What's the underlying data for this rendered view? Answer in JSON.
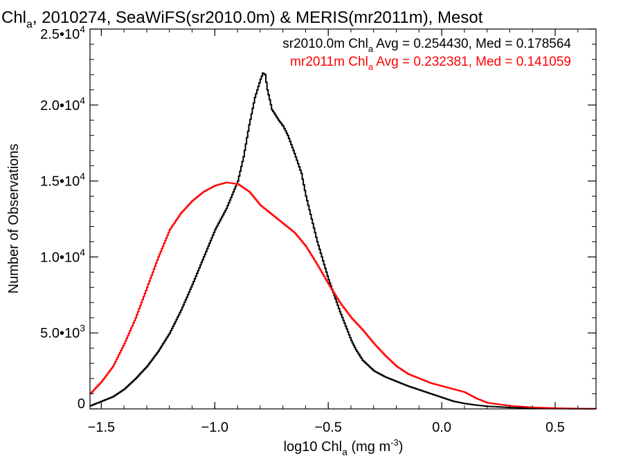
{
  "chart_data": {
    "type": "line",
    "title": {
      "p1": "Chl",
      "p1_sub": "a",
      "p2": ", 2010274, SeaWiFS(sr2010.0m) & MERIS(mr2011m), Mesot"
    },
    "xlabel": {
      "pre": "log10 Chl",
      "sub": "a",
      "mid": " (mg m",
      "sup": "-3",
      "post": ")"
    },
    "ylabel": "Number of Observations",
    "xlim": [
      -1.55,
      0.68
    ],
    "ylim": [
      0,
      25000
    ],
    "x_ticks": [
      {
        "value": -1.5,
        "label": "−1.5"
      },
      {
        "value": -1.0,
        "label": "−1.0"
      },
      {
        "value": -0.5,
        "label": "−0.5"
      },
      {
        "value": 0.0,
        "label": "0.0"
      },
      {
        "value": 0.5,
        "label": "0.5"
      }
    ],
    "y_ticks": [
      {
        "value": 0,
        "mantissa": "0",
        "exp": ""
      },
      {
        "value": 5000,
        "mantissa": "5.0•10",
        "exp": "3"
      },
      {
        "value": 10000,
        "mantissa": "1.0•10",
        "exp": "4"
      },
      {
        "value": 15000,
        "mantissa": "1.5•10",
        "exp": "4"
      },
      {
        "value": 20000,
        "mantissa": "2.0•10",
        "exp": "4"
      },
      {
        "value": 25000,
        "mantissa": "2.5•10",
        "exp": "4"
      }
    ],
    "legend": {
      "placement": "top-right",
      "entries": [
        {
          "pre": "sr2010.0m Chl",
          "sub": "a",
          "post": " Avg = 0.254430, Med = 0.178564",
          "color": "#000000"
        },
        {
          "pre": "mr2011m Chl",
          "sub": "a",
          "post": " Avg = 0.232381, Med = 0.141059",
          "color": "#ff0000"
        }
      ]
    },
    "series": [
      {
        "color": "#000000",
        "x": [
          -1.55,
          -1.5,
          -1.45,
          -1.4,
          -1.35,
          -1.3,
          -1.25,
          -1.2,
          -1.15,
          -1.1,
          -1.05,
          -1.0,
          -0.95,
          -0.9,
          -0.875,
          -0.85,
          -0.825,
          -0.8,
          -0.79,
          -0.78,
          -0.77,
          -0.75,
          -0.72,
          -0.7,
          -0.68,
          -0.65,
          -0.62,
          -0.6,
          -0.58,
          -0.55,
          -0.5,
          -0.45,
          -0.4,
          -0.38,
          -0.35,
          -0.3,
          -0.25,
          -0.2,
          -0.15,
          -0.1,
          -0.05,
          0.0,
          0.05,
          0.1,
          0.15,
          0.2,
          0.3,
          0.4,
          0.5,
          0.6,
          0.68
        ],
        "y": [
          200,
          500,
          800,
          1300,
          2000,
          2800,
          3800,
          5000,
          6500,
          8200,
          10000,
          11800,
          13200,
          15000,
          16600,
          18700,
          20500,
          21700,
          22100,
          22000,
          21000,
          19700,
          19000,
          18600,
          18000,
          16800,
          15500,
          14000,
          12800,
          11000,
          8500,
          6400,
          4500,
          3900,
          3200,
          2500,
          2100,
          1800,
          1500,
          1250,
          1000,
          750,
          500,
          350,
          250,
          170,
          90,
          40,
          20,
          10,
          5
        ]
      },
      {
        "color": "#ff0000",
        "x": [
          -1.55,
          -1.5,
          -1.45,
          -1.4,
          -1.35,
          -1.3,
          -1.25,
          -1.2,
          -1.15,
          -1.1,
          -1.05,
          -1.0,
          -0.95,
          -0.9,
          -0.85,
          -0.8,
          -0.75,
          -0.7,
          -0.65,
          -0.6,
          -0.55,
          -0.5,
          -0.45,
          -0.4,
          -0.35,
          -0.3,
          -0.25,
          -0.2,
          -0.15,
          -0.1,
          -0.05,
          0.0,
          0.05,
          0.1,
          0.15,
          0.2,
          0.3,
          0.4,
          0.5,
          0.6,
          0.68
        ],
        "y": [
          1000,
          1800,
          2800,
          4300,
          6000,
          8000,
          10000,
          11800,
          12900,
          13700,
          14300,
          14700,
          14900,
          14800,
          14300,
          13400,
          12800,
          12200,
          11600,
          10700,
          9500,
          8200,
          7000,
          6000,
          5200,
          4300,
          3500,
          2800,
          2300,
          2000,
          1700,
          1500,
          1300,
          1100,
          700,
          400,
          200,
          100,
          50,
          20,
          10
        ]
      }
    ]
  }
}
